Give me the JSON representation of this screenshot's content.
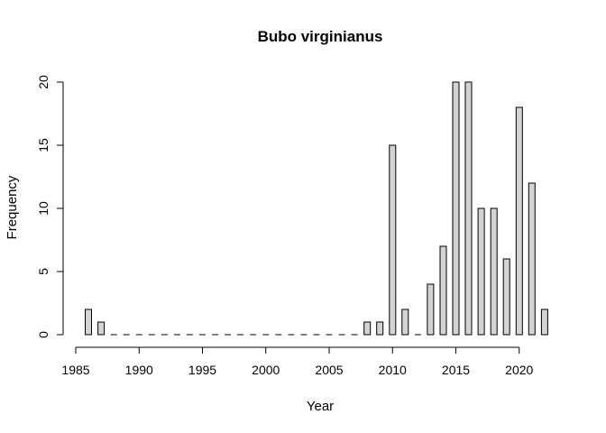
{
  "chart_data": {
    "type": "bar",
    "title": "Bubo virginianus",
    "xlabel": "Year",
    "ylabel": "Frequency",
    "x_ticks": [
      1985,
      1990,
      1995,
      2000,
      2005,
      2010,
      2015,
      2020
    ],
    "y_ticks": [
      0,
      5,
      10,
      15,
      20
    ],
    "xlim": [
      1985,
      2022
    ],
    "ylim": [
      0,
      20
    ],
    "grid": false,
    "bar_color": "#d3d3d3",
    "x": [
      1986,
      1987,
      1988,
      1989,
      1990,
      1991,
      1992,
      1993,
      1994,
      1995,
      1996,
      1997,
      1998,
      1999,
      2000,
      2001,
      2002,
      2003,
      2004,
      2005,
      2006,
      2007,
      2008,
      2009,
      2010,
      2011,
      2012,
      2013,
      2014,
      2015,
      2016,
      2017,
      2018,
      2019,
      2020,
      2021,
      2022
    ],
    "values": [
      2,
      1,
      0,
      0,
      0,
      0,
      0,
      0,
      0,
      0,
      0,
      0,
      0,
      0,
      0,
      0,
      0,
      0,
      0,
      0,
      0,
      0,
      1,
      1,
      15,
      2,
      0,
      4,
      7,
      20,
      20,
      10,
      10,
      6,
      18,
      12,
      2
    ]
  }
}
